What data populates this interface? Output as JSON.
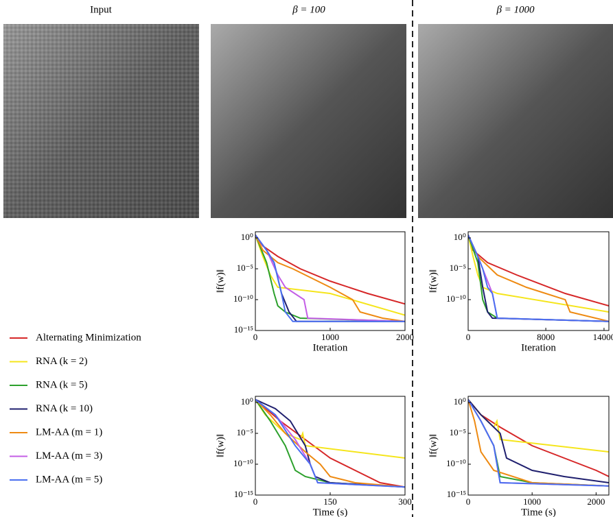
{
  "column_titles": [
    "Input",
    "β = 100",
    "β = 1000"
  ],
  "legend": [
    {
      "name": "Alternating Minimization",
      "color": "#d62728"
    },
    {
      "name": "RNA (k = 2)",
      "color": "#f5e51b"
    },
    {
      "name": "RNA (k = 5)",
      "color": "#2ca02c"
    },
    {
      "name": "RNA (k = 10)",
      "color": "#1f1f6e"
    },
    {
      "name": "LM-AA (m = 1)",
      "color": "#ee8a12"
    },
    {
      "name": "LM-AA (m = 3)",
      "color": "#c45ee6"
    },
    {
      "name": "LM-AA (m = 5)",
      "color": "#4a6ff0"
    }
  ],
  "chart_data": [
    {
      "type": "line",
      "log_y": true,
      "xlabel": "Iteration",
      "ylabel": "‖f(w)‖",
      "xlim": [
        0,
        2000
      ],
      "xticks": [
        0,
        1000,
        2000
      ],
      "ylim": [
        1e-15,
        10
      ],
      "yticks": [
        {
          "value": 1,
          "label": "10⁰"
        },
        {
          "value": 1e-05,
          "label": "10⁻⁵"
        },
        {
          "value": 1e-10,
          "label": "10⁻¹⁰"
        },
        {
          "value": 1e-15,
          "label": "10⁻¹⁵"
        }
      ],
      "series": [
        {
          "x": [
            0,
            100,
            300,
            600,
            1000,
            1500,
            2000
          ],
          "values": [
            3,
            0.05,
            0.001,
            1e-05,
            1e-07,
            1e-09,
            2e-11
          ]
        },
        {
          "x": [
            0,
            100,
            200,
            300,
            1000,
            2000
          ],
          "values": [
            3,
            0.001,
            1e-06,
            1e-08,
            1e-09,
            3e-13
          ]
        },
        {
          "x": [
            0,
            150,
            250,
            300,
            400,
            600,
            2000
          ],
          "values": [
            3,
            0.0001,
            1e-09,
            1e-11,
            1e-12,
            1e-13,
            3e-14
          ]
        },
        {
          "x": [
            0,
            150,
            250,
            350,
            450,
            550,
            600,
            2000
          ],
          "values": [
            3,
            0.01,
            0.0001,
            1e-09,
            1e-12,
            3e-14,
            3e-14,
            3e-14
          ]
        },
        {
          "x": [
            0,
            100,
            300,
            500,
            1000,
            1300,
            1400,
            1700,
            2000
          ],
          "values": [
            3,
            0.01,
            0.0001,
            1e-05,
            1e-08,
            1e-10,
            1e-12,
            1e-13,
            3e-14
          ]
        },
        {
          "x": [
            0,
            150,
            300,
            400,
            650,
            700,
            2000
          ],
          "values": [
            3,
            0.01,
            1e-06,
            1e-08,
            1e-10,
            1e-13,
            3e-14
          ]
        },
        {
          "x": [
            0,
            150,
            250,
            350,
            400,
            500,
            2000
          ],
          "values": [
            3,
            0.01,
            0.0001,
            1e-09,
            1e-12,
            3e-14,
            3e-14
          ]
        }
      ]
    },
    {
      "type": "line",
      "log_y": true,
      "xlabel": "Iteration",
      "ylabel": "‖f(w)‖",
      "xlim": [
        0,
        14500
      ],
      "xticks": [
        0,
        8000,
        14000
      ],
      "ylim": [
        1e-15,
        10
      ],
      "yticks": [
        {
          "value": 1,
          "label": "10⁰"
        },
        {
          "value": 1e-05,
          "label": "10⁻⁵"
        },
        {
          "value": 1e-10,
          "label": "10⁻¹⁰"
        }
      ],
      "series": [
        {
          "x": [
            0,
            500,
            2000,
            5000,
            10000,
            14500
          ],
          "values": [
            3,
            0.01,
            0.0001,
            1e-06,
            1e-09,
            1e-11
          ]
        },
        {
          "x": [
            0,
            500,
            1000,
            1500,
            3000,
            14500
          ],
          "values": [
            3,
            0.001,
            1e-06,
            1e-08,
            1e-09,
            1e-12
          ]
        },
        {
          "x": [
            0,
            1000,
            1500,
            2000,
            3000,
            14500
          ],
          "values": [
            3,
            0.0001,
            1e-10,
            1e-12,
            1e-13,
            3e-14
          ]
        },
        {
          "x": [
            0,
            1000,
            1500,
            2000,
            2500,
            14500
          ],
          "values": [
            3,
            0.001,
            1e-08,
            1e-12,
            1e-13,
            3e-14
          ]
        },
        {
          "x": [
            0,
            1000,
            3000,
            6000,
            10000,
            10500,
            14500
          ],
          "values": [
            3,
            0.001,
            1e-06,
            1e-08,
            1e-10,
            1e-12,
            3e-14
          ]
        },
        {
          "x": [
            0,
            1000,
            2000,
            2500,
            3000,
            14500
          ],
          "values": [
            3,
            0.001,
            1e-07,
            1e-09,
            1e-13,
            3e-14
          ]
        },
        {
          "x": [
            0,
            1000,
            1500,
            2000,
            2500,
            3000,
            14500
          ],
          "values": [
            3,
            0.001,
            1e-05,
            1e-08,
            1e-09,
            1e-13,
            3e-14
          ]
        }
      ]
    },
    {
      "type": "line",
      "log_y": true,
      "xlabel": "Time (s)",
      "ylabel": "‖f(w)‖",
      "xlim": [
        0,
        300
      ],
      "xticks": [
        0,
        150,
        300
      ],
      "ylim": [
        1e-15,
        10
      ],
      "yticks": [
        {
          "value": 1,
          "label": "10⁰"
        },
        {
          "value": 1e-05,
          "label": "10⁻⁵"
        },
        {
          "value": 1e-10,
          "label": "10⁻¹⁰"
        },
        {
          "value": 1e-15,
          "label": "10⁻¹⁵"
        }
      ],
      "series": [
        {
          "x": [
            0,
            50,
            100,
            150,
            200,
            250,
            300
          ],
          "values": [
            3,
            0.001,
            1e-06,
            1e-09,
            1e-11,
            1e-13,
            2e-14
          ]
        },
        {
          "x": [
            0,
            20,
            60,
            90,
            95,
            100,
            300
          ],
          "values": [
            3,
            0.01,
            1e-05,
            1e-06,
            1e-05,
            1e-07,
            1e-09
          ]
        },
        {
          "x": [
            0,
            30,
            60,
            80,
            100,
            150,
            300
          ],
          "values": [
            3,
            0.001,
            1e-07,
            1e-11,
            1e-12,
            1e-13,
            2e-14
          ]
        },
        {
          "x": [
            0,
            40,
            70,
            100,
            110,
            120,
            150,
            300
          ],
          "values": [
            3,
            0.1,
            0.001,
            1e-07,
            1e-10,
            1e-12,
            1e-13,
            2e-14
          ]
        },
        {
          "x": [
            0,
            30,
            60,
            100,
            130,
            150,
            200,
            300
          ],
          "values": [
            3,
            0.01,
            1e-05,
            1e-08,
            1e-10,
            1e-12,
            1e-13,
            2e-14
          ]
        },
        {
          "x": [
            0,
            40,
            80,
            110,
            125,
            300
          ],
          "values": [
            3,
            0.01,
            1e-06,
            1e-10,
            1e-13,
            2e-14
          ]
        },
        {
          "x": [
            0,
            40,
            80,
            110,
            125,
            300
          ],
          "values": [
            3,
            0.01,
            1e-07,
            1e-10,
            1e-13,
            2e-14
          ]
        }
      ]
    },
    {
      "type": "line",
      "log_y": true,
      "xlabel": "Time (s)",
      "ylabel": "‖f(w)‖",
      "xlim": [
        0,
        2200
      ],
      "xticks": [
        0,
        1000,
        2000
      ],
      "ylim": [
        1e-15,
        10
      ],
      "yticks": [
        {
          "value": 1,
          "label": "10⁰"
        },
        {
          "value": 1e-05,
          "label": "10⁻⁵"
        },
        {
          "value": 1e-10,
          "label": "10⁻¹⁰"
        },
        {
          "value": 1e-15,
          "label": "10⁻¹⁵"
        }
      ],
      "series": [
        {
          "x": [
            0,
            200,
            500,
            1000,
            1500,
            2000,
            2200
          ],
          "values": [
            3,
            0.01,
            0.0001,
            1e-07,
            1e-09,
            1e-11,
            1e-12
          ]
        },
        {
          "x": [
            0,
            200,
            400,
            450,
            500,
            2200
          ],
          "values": [
            3,
            0.01,
            0.0001,
            0.001,
            1e-06,
            1e-08
          ]
        },
        {
          "x": [
            0,
            200,
            400,
            500,
            1000,
            2200
          ],
          "values": [
            3,
            0.001,
            1e-07,
            1e-12,
            1e-13,
            3e-14
          ]
        },
        {
          "x": [
            0,
            200,
            400,
            500,
            600,
            1000,
            1500,
            2200
          ],
          "values": [
            3,
            0.01,
            0.0001,
            1e-05,
            1e-09,
            1e-11,
            1e-12,
            1e-13
          ]
        },
        {
          "x": [
            0,
            100,
            200,
            400,
            1000,
            2200
          ],
          "values": [
            3,
            0.001,
            1e-08,
            1e-11,
            1e-13,
            3e-14
          ]
        },
        {
          "x": [
            0,
            200,
            400,
            500,
            2200
          ],
          "values": [
            3,
            0.001,
            1e-07,
            1e-13,
            3e-14
          ]
        },
        {
          "x": [
            0,
            200,
            400,
            500,
            2200
          ],
          "values": [
            3,
            0.001,
            1e-07,
            1e-13,
            3e-14
          ]
        }
      ]
    }
  ]
}
